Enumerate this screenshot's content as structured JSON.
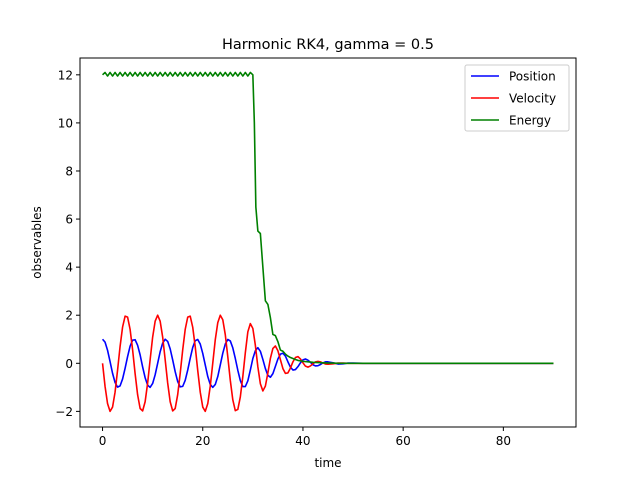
{
  "chart_data": {
    "type": "line",
    "title": "Harmonic RK4, gamma = 0.5",
    "xlabel": "time",
    "ylabel": "observables",
    "xlim": [
      -4.5,
      94.5
    ],
    "ylim": [
      -2.65,
      12.7
    ],
    "xticks": [
      0,
      20,
      40,
      60,
      80
    ],
    "yticks": [
      -2,
      0,
      2,
      4,
      6,
      8,
      10,
      12
    ],
    "ytick_labels": [
      "−2",
      "0",
      "2",
      "4",
      "6",
      "8",
      "10",
      "12"
    ],
    "grid": false,
    "legend_position": "top-right",
    "series": [
      {
        "name": "Position",
        "color": "#0000ff",
        "x": [
          0,
          0.5,
          1,
          1.5,
          2,
          2.5,
          3,
          3.5,
          4,
          4.5,
          5,
          5.5,
          6,
          6.5,
          7,
          7.5,
          8,
          8.5,
          9,
          9.5,
          10,
          10.5,
          11,
          11.5,
          12,
          12.5,
          13,
          13.5,
          14,
          14.5,
          15,
          15.5,
          16,
          16.5,
          17,
          17.5,
          18,
          18.5,
          19,
          19.5,
          20,
          20.5,
          21,
          21.5,
          22,
          22.5,
          23,
          23.5,
          24,
          24.5,
          25,
          25.5,
          26,
          26.5,
          27,
          27.5,
          28,
          28.5,
          29,
          29.5,
          30,
          30.5,
          31,
          31.5,
          32,
          32.5,
          33,
          33.5,
          34,
          34.5,
          35,
          35.5,
          36,
          36.5,
          37,
          37.5,
          38,
          38.5,
          39,
          39.5,
          40,
          40.5,
          41,
          41.5,
          42,
          42.5,
          43,
          43.5,
          44,
          44.5,
          45,
          46,
          47,
          48,
          49,
          50,
          52,
          55,
          60,
          65,
          70,
          75,
          80,
          85,
          90
        ],
        "y": [
          1.0,
          0.88,
          0.54,
          0.07,
          -0.42,
          -0.8,
          -0.99,
          -0.94,
          -0.65,
          -0.21,
          0.28,
          0.71,
          0.96,
          0.98,
          0.75,
          0.35,
          -0.15,
          -0.6,
          -0.91,
          -1.0,
          -0.84,
          -0.48,
          0.0,
          0.48,
          0.84,
          1.0,
          0.91,
          0.6,
          0.14,
          -0.35,
          -0.76,
          -0.98,
          -0.96,
          -0.71,
          -0.28,
          0.21,
          0.66,
          0.94,
          0.99,
          0.8,
          0.41,
          -0.07,
          -0.55,
          -0.88,
          -1.0,
          -0.88,
          -0.55,
          -0.07,
          0.42,
          0.8,
          0.99,
          0.93,
          0.64,
          0.2,
          -0.29,
          -0.72,
          -0.97,
          -0.97,
          -0.73,
          -0.28,
          0.2,
          0.52,
          0.65,
          0.5,
          0.16,
          -0.22,
          -0.5,
          -0.58,
          -0.43,
          -0.13,
          0.18,
          0.38,
          0.42,
          0.3,
          0.06,
          -0.16,
          -0.28,
          -0.26,
          -0.14,
          0.02,
          0.14,
          0.18,
          0.13,
          0.04,
          -0.06,
          -0.11,
          -0.1,
          -0.05,
          0.02,
          0.06,
          0.06,
          0.02,
          -0.03,
          -0.02,
          0.01,
          0.01,
          0.0,
          0.0,
          0.0,
          0.0,
          0.0,
          0.0,
          0.0,
          0.0,
          0.0
        ]
      },
      {
        "name": "Velocity",
        "color": "#ff0000",
        "x": [
          0,
          0.5,
          1,
          1.5,
          2,
          2.5,
          3,
          3.5,
          4,
          4.5,
          5,
          5.5,
          6,
          6.5,
          7,
          7.5,
          8,
          8.5,
          9,
          9.5,
          10,
          10.5,
          11,
          11.5,
          12,
          12.5,
          13,
          13.5,
          14,
          14.5,
          15,
          15.5,
          16,
          16.5,
          17,
          17.5,
          18,
          18.5,
          19,
          19.5,
          20,
          20.5,
          21,
          21.5,
          22,
          22.5,
          23,
          23.5,
          24,
          24.5,
          25,
          25.5,
          26,
          26.5,
          27,
          27.5,
          28,
          28.5,
          29,
          29.5,
          30,
          30.5,
          31,
          31.5,
          32,
          32.5,
          33,
          33.5,
          34,
          34.5,
          35,
          35.5,
          36,
          36.5,
          37,
          37.5,
          38,
          38.5,
          39,
          39.5,
          40,
          40.5,
          41,
          41.5,
          42,
          42.5,
          43,
          43.5,
          44,
          44.5,
          45,
          46,
          47,
          48,
          49,
          50,
          52,
          55,
          60,
          65,
          70,
          75,
          80,
          85,
          90
        ],
        "y": [
          0.0,
          -0.96,
          -1.68,
          -2.0,
          -1.82,
          -1.2,
          -0.28,
          0.7,
          1.51,
          1.96,
          1.92,
          1.41,
          0.56,
          -0.43,
          -1.31,
          -1.88,
          -1.98,
          -1.6,
          -0.82,
          0.15,
          1.09,
          1.75,
          2.0,
          1.75,
          1.09,
          0.15,
          -0.82,
          -1.6,
          -1.98,
          -1.88,
          -1.3,
          -0.42,
          0.56,
          1.41,
          1.92,
          1.96,
          1.5,
          0.69,
          -0.3,
          -1.2,
          -1.82,
          -2.0,
          -1.68,
          -0.95,
          0.01,
          0.98,
          1.69,
          2.0,
          1.81,
          1.19,
          0.27,
          -0.71,
          -1.52,
          -1.97,
          -1.92,
          -1.4,
          -0.55,
          0.44,
          1.31,
          1.65,
          1.45,
          0.75,
          -0.15,
          -0.85,
          -1.15,
          -0.95,
          -0.4,
          0.2,
          0.62,
          0.72,
          0.52,
          0.15,
          -0.22,
          -0.42,
          -0.4,
          -0.2,
          0.06,
          0.24,
          0.28,
          0.18,
          0.02,
          -0.12,
          -0.16,
          -0.11,
          -0.02,
          0.06,
          0.08,
          0.06,
          0.01,
          -0.03,
          -0.04,
          -0.02,
          0.01,
          0.01,
          0.0,
          0.0,
          0.0,
          0.0,
          0.0,
          0.0,
          0.0,
          0.0,
          0.0,
          0.0,
          0.0
        ]
      },
      {
        "name": "Energy",
        "color": "#008000",
        "x": [
          0,
          0.5,
          1,
          1.5,
          2,
          2.5,
          3,
          3.5,
          4,
          4.5,
          5,
          5.5,
          6,
          6.5,
          7,
          7.5,
          8,
          8.5,
          9,
          9.5,
          10,
          10.5,
          11,
          11.5,
          12,
          12.5,
          13,
          13.5,
          14,
          14.5,
          15,
          15.5,
          16,
          16.5,
          17,
          17.5,
          18,
          18.5,
          19,
          19.5,
          20,
          20.5,
          21,
          21.5,
          22,
          22.5,
          23,
          23.5,
          24,
          24.5,
          25,
          25.5,
          26,
          26.5,
          27,
          27.5,
          28,
          28.5,
          29,
          29.5,
          30,
          30.3,
          30.6,
          31,
          31.5,
          32,
          32.5,
          33,
          33.5,
          34,
          34.5,
          35,
          35.5,
          36,
          36.5,
          37,
          37.5,
          38,
          38.5,
          39,
          39.5,
          40,
          41,
          42,
          43,
          44,
          45,
          46,
          47,
          48,
          50,
          55,
          60,
          70,
          80,
          90
        ],
        "y": [
          12.0,
          12.1,
          11.95,
          12.1,
          11.95,
          12.1,
          11.95,
          12.1,
          11.95,
          12.1,
          11.95,
          12.1,
          11.95,
          12.1,
          11.95,
          12.1,
          11.95,
          12.1,
          11.95,
          12.1,
          11.95,
          12.1,
          11.95,
          12.1,
          11.95,
          12.1,
          11.95,
          12.1,
          11.95,
          12.1,
          11.95,
          12.1,
          11.95,
          12.1,
          11.95,
          12.1,
          11.95,
          12.1,
          11.95,
          12.1,
          11.95,
          12.1,
          11.95,
          12.1,
          11.95,
          12.1,
          11.95,
          12.1,
          11.95,
          12.1,
          11.95,
          12.1,
          11.95,
          12.1,
          11.95,
          12.1,
          11.95,
          12.1,
          11.95,
          12.1,
          12.0,
          10.0,
          6.5,
          5.5,
          5.4,
          4.0,
          2.6,
          2.45,
          1.9,
          1.2,
          1.15,
          0.9,
          0.55,
          0.5,
          0.38,
          0.3,
          0.24,
          0.2,
          0.16,
          0.12,
          0.1,
          0.08,
          0.06,
          0.04,
          0.03,
          0.02,
          0.01,
          0.01,
          0.0,
          0.0,
          0.0,
          0.0,
          0.0,
          0.0,
          0.0,
          0.0
        ]
      }
    ]
  }
}
